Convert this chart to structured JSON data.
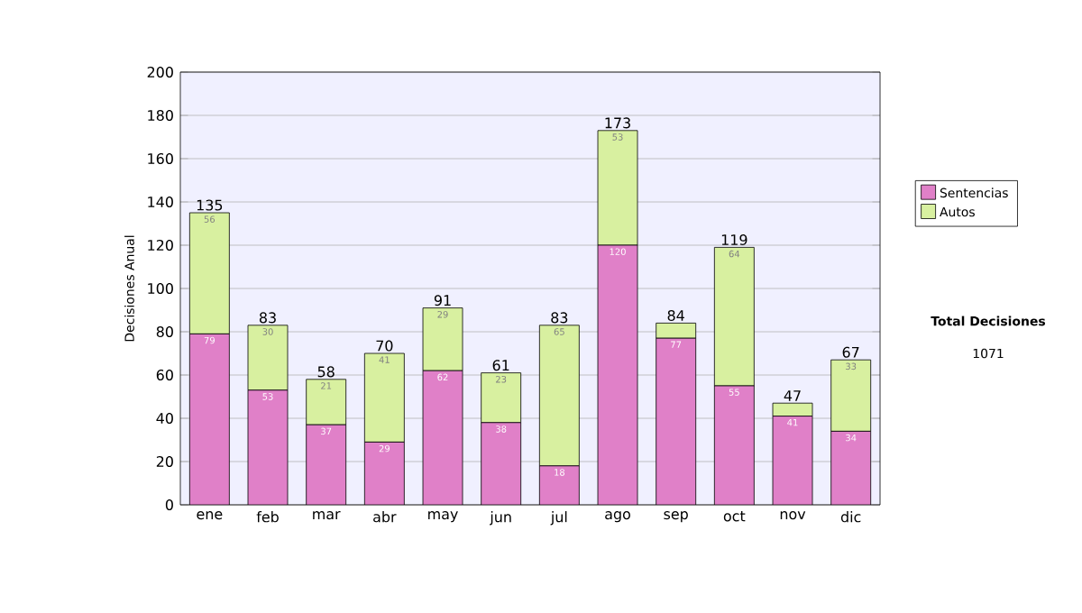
{
  "chart_data": {
    "type": "bar",
    "stacked": true,
    "ylabel": "Decisiones Anual",
    "categories": [
      "ene",
      "feb",
      "mar",
      "abr",
      "may",
      "jun",
      "jul",
      "ago",
      "sep",
      "oct",
      "nov",
      "dic"
    ],
    "series": [
      {
        "name": "Sentencias",
        "color": "#e080c8",
        "values": [
          79,
          53,
          37,
          29,
          62,
          38,
          18,
          120,
          77,
          55,
          41,
          34
        ],
        "value_labels": [
          "79",
          "53",
          "37",
          "29",
          "62",
          "38",
          "18",
          "120",
          "77",
          "55",
          "41",
          "34"
        ]
      },
      {
        "name": "Autos",
        "color": "#d8f0a0",
        "values": [
          56,
          30,
          21,
          41,
          29,
          23,
          65,
          53,
          7,
          64,
          6,
          33
        ],
        "value_labels": [
          "56",
          "30",
          "21",
          "41",
          "29",
          "23",
          "65",
          "53",
          null,
          "64",
          null,
          "33"
        ]
      }
    ],
    "totals": [
      "135",
      "83",
      "58",
      "70",
      "91",
      "61",
      "83",
      "173",
      "84",
      "119",
      "47",
      "67"
    ],
    "ylim": [
      0,
      200
    ],
    "yticks": [
      0,
      20,
      40,
      60,
      80,
      100,
      120,
      140,
      160,
      180,
      200
    ],
    "grid": "y",
    "legend": "right",
    "annotations": [
      "Total Decisiones",
      "1071"
    ]
  }
}
